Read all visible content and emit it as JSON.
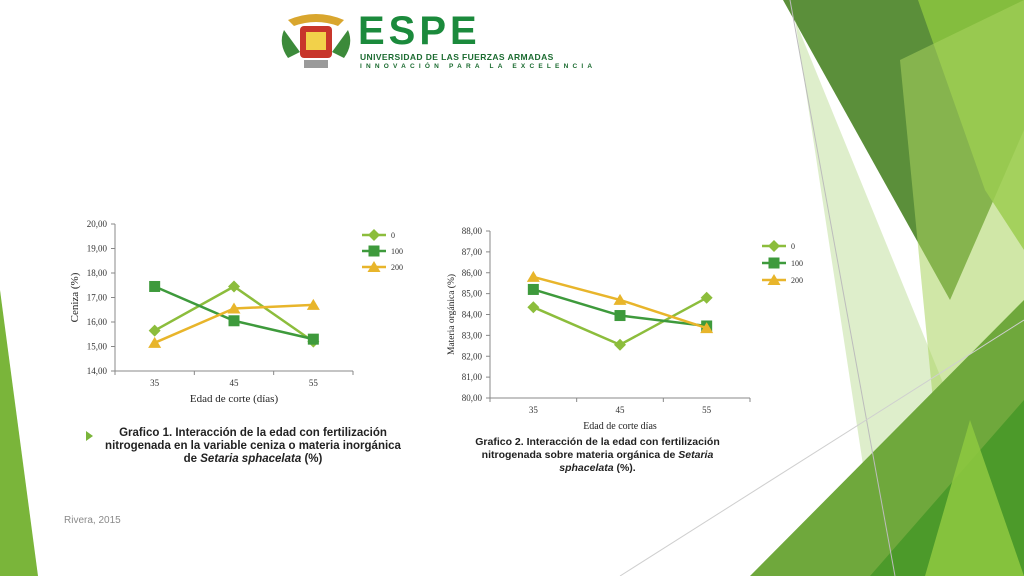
{
  "logo": {
    "word": "ESPE",
    "subtitle": "UNIVERSIDAD DE LAS FUERZAS ARMADAS",
    "motto": "INNOVACIÓN PARA LA EXCELENCIA"
  },
  "colors": {
    "series_0": "#8cbd3c",
    "series_100": "#3e9a3c",
    "series_200": "#e8b52b",
    "accent_green": "#7ab53a"
  },
  "captions": {
    "chart1": {
      "part1": "Grafico 1.  Interacción de la edad con fertilización nitrogenada en la variable ceniza o materia inorgánica de ",
      "italic": "Setaria sphacelata",
      "part2": " (%)"
    },
    "chart2": {
      "part1": "Grafico 2. Interacción de la edad con fertilización nitrogenada sobre materia orgánica de ",
      "italic": "Setaria sphacelata",
      "part2": " (%)."
    }
  },
  "footer": "Rivera, 2015",
  "chart_data": [
    {
      "type": "line",
      "title": "",
      "categories": [
        "35",
        "45",
        "55"
      ],
      "xlabel": "Edad de corte (días)",
      "ylabel": "Ceniza  (%)",
      "ylim": [
        14,
        20
      ],
      "yticks": [
        "14,00",
        "15,00",
        "16,00",
        "17,00",
        "18,00",
        "19,00",
        "20,00"
      ],
      "legend_position": "right",
      "series": [
        {
          "name": "0",
          "values": [
            15.65,
            17.45,
            15.2
          ],
          "marker": "diamond",
          "color": "#8cbd3c"
        },
        {
          "name": "100",
          "values": [
            17.45,
            16.05,
            15.3
          ],
          "marker": "square",
          "color": "#3e9a3c"
        },
        {
          "name": "200",
          "values": [
            15.15,
            16.55,
            16.7
          ],
          "marker": "triangle",
          "color": "#e8b52b"
        }
      ]
    },
    {
      "type": "line",
      "title": "",
      "categories": [
        "35",
        "45",
        "55"
      ],
      "xlabel": "Edad de corte días",
      "ylabel": "Materia orgánica (%)",
      "ylim": [
        80,
        88
      ],
      "yticks": [
        "80,00",
        "81,00",
        "82,00",
        "83,00",
        "84,00",
        "85,00",
        "86,00",
        "87,00",
        "88,00"
      ],
      "legend_position": "right",
      "series": [
        {
          "name": "0",
          "values": [
            84.35,
            82.55,
            84.8
          ],
          "marker": "diamond",
          "color": "#8cbd3c"
        },
        {
          "name": "100",
          "values": [
            85.2,
            83.95,
            83.45
          ],
          "marker": "square",
          "color": "#3e9a3c"
        },
        {
          "name": "200",
          "values": [
            85.8,
            84.7,
            83.35
          ],
          "marker": "triangle",
          "color": "#e8b52b"
        }
      ]
    }
  ]
}
